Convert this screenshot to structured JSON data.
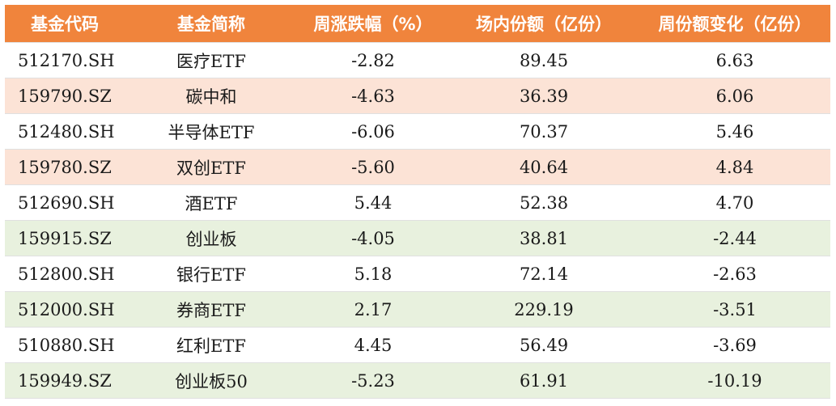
{
  "table": {
    "headers": [
      "基金代码",
      "基金简称",
      "周涨跌幅（%）",
      "场内份额（亿份）",
      "周份额变化（亿份）"
    ],
    "colors": {
      "header_bg": "#f0843c",
      "row_white": "#ffffff",
      "row_orange": "#fce3d6",
      "row_green": "#e8f1de"
    },
    "rows": [
      {
        "code": "512170.SH",
        "name": "医疗ETF",
        "weekly_change": "-2.82",
        "shares": "89.45",
        "share_change": "6.63",
        "tint": "white"
      },
      {
        "code": "159790.SZ",
        "name": "碳中和",
        "weekly_change": "-4.63",
        "shares": "36.39",
        "share_change": "6.06",
        "tint": "orange"
      },
      {
        "code": "512480.SH",
        "name": "半导体ETF",
        "weekly_change": "-6.06",
        "shares": "70.37",
        "share_change": "5.46",
        "tint": "white"
      },
      {
        "code": "159780.SZ",
        "name": "双创ETF",
        "weekly_change": "-5.60",
        "shares": "40.64",
        "share_change": "4.84",
        "tint": "orange"
      },
      {
        "code": "512690.SH",
        "name": "酒ETF",
        "weekly_change": "5.44",
        "shares": "52.38",
        "share_change": "4.70",
        "tint": "white"
      },
      {
        "code": "159915.SZ",
        "name": "创业板",
        "weekly_change": "-4.05",
        "shares": "38.81",
        "share_change": "-2.44",
        "tint": "green"
      },
      {
        "code": "512800.SH",
        "name": "银行ETF",
        "weekly_change": "5.18",
        "shares": "72.14",
        "share_change": "-2.63",
        "tint": "white"
      },
      {
        "code": "512000.SH",
        "name": "券商ETF",
        "weekly_change": "2.17",
        "shares": "229.19",
        "share_change": "-3.51",
        "tint": "green"
      },
      {
        "code": "510880.SH",
        "name": "红利ETF",
        "weekly_change": "4.45",
        "shares": "56.49",
        "share_change": "-3.69",
        "tint": "white"
      },
      {
        "code": "159949.SZ",
        "name": "创业板50",
        "weekly_change": "-5.23",
        "shares": "61.91",
        "share_change": "-10.19",
        "tint": "green"
      }
    ]
  }
}
